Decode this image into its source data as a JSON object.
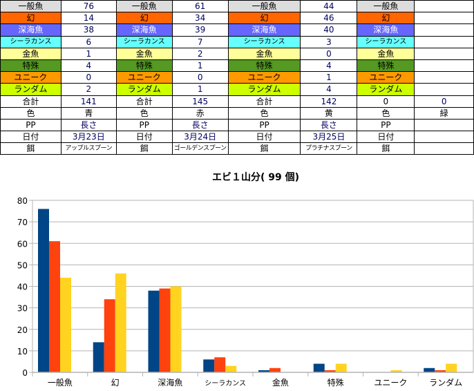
{
  "sheet": {
    "rows": [
      [
        "一般魚",
        "76",
        "一般魚",
        "61",
        "一般魚",
        "44",
        "一般魚",
        ""
      ],
      [
        "幻",
        "14",
        "幻",
        "34",
        "幻",
        "46",
        "幻",
        ""
      ],
      [
        "深海魚",
        "38",
        "深海魚",
        "39",
        "深海魚",
        "40",
        "深海魚",
        ""
      ],
      [
        "シーラカンス",
        "6",
        "シーラカンス",
        "7",
        "シーラカンス",
        "3",
        "シーラカンス",
        ""
      ],
      [
        "金魚",
        "1",
        "金魚",
        "2",
        "金魚",
        "0",
        "金魚",
        ""
      ],
      [
        "特殊",
        "4",
        "特殊",
        "1",
        "特殊",
        "4",
        "特殊",
        ""
      ],
      [
        "ユニーク",
        "0",
        "ユニーク",
        "0",
        "ユニーク",
        "1",
        "ユニーク",
        ""
      ],
      [
        "ランダム",
        "2",
        "ランダム",
        "1",
        "ランダム",
        "4",
        "ランダム",
        ""
      ],
      [
        "合計",
        "141",
        "合計",
        "145",
        "合計",
        "142",
        "0",
        "0"
      ],
      [
        "色",
        "青",
        "色",
        "赤",
        "色",
        "黄",
        "色",
        "緑"
      ],
      [
        "PP",
        "長さ",
        "PP",
        "長さ",
        "PP",
        "長さ",
        "PP",
        ""
      ],
      [
        "日付",
        "3月23日",
        "日付",
        "3月24日",
        "日付",
        "3月25日",
        "日付",
        ""
      ],
      [
        "餌",
        "アップルスプーン",
        "餌",
        "ゴールデンスプーン",
        "餌",
        "プラチナスプーン",
        "餌",
        ""
      ]
    ],
    "row_colors": [
      "#dddddd",
      "#ff6600",
      "#6666ff",
      "#66ffff",
      "#ffff99",
      "#559922",
      "#ff9900",
      "#ccff00"
    ]
  },
  "chart_data": {
    "type": "bar",
    "title": "エビ１山分( 99 個)",
    "categories": [
      "一般魚",
      "幻",
      "深海魚",
      "シーラカンス",
      "金魚",
      "特殊",
      "ユニーク",
      "ランダム"
    ],
    "series": [
      {
        "name": "青",
        "color": "#004586",
        "values": [
          76,
          14,
          38,
          6,
          1,
          4,
          0,
          2
        ]
      },
      {
        "name": "赤",
        "color": "#ff420e",
        "values": [
          61,
          34,
          39,
          7,
          2,
          1,
          0,
          1
        ]
      },
      {
        "name": "黄",
        "color": "#ffd320",
        "values": [
          44,
          46,
          40,
          3,
          0,
          4,
          1,
          4
        ]
      }
    ],
    "ylim": [
      0,
      80
    ],
    "yticks": [
      "0",
      "10",
      "20",
      "30",
      "40",
      "50",
      "60",
      "70",
      "80"
    ],
    "grid": true,
    "legend": "none"
  }
}
